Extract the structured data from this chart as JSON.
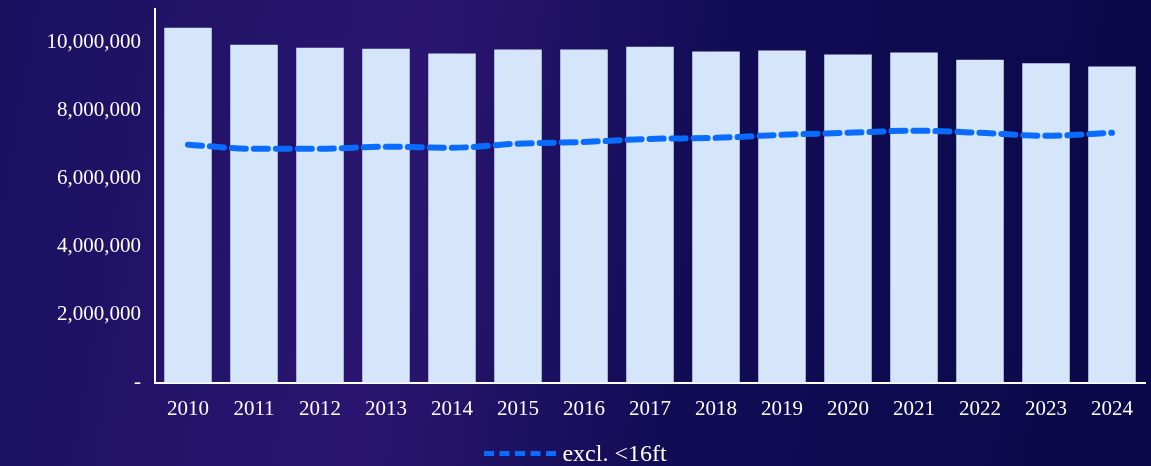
{
  "chart_data": {
    "type": "bar",
    "categories": [
      "2010",
      "2011",
      "2012",
      "2013",
      "2014",
      "2015",
      "2016",
      "2017",
      "2018",
      "2019",
      "2020",
      "2021",
      "2022",
      "2023",
      "2024"
    ],
    "series": [
      {
        "color": "#d5e6fb",
        "values": [
          10440000,
          9940000,
          9850000,
          9820000,
          9680000,
          9800000,
          9800000,
          9880000,
          9740000,
          9770000,
          9650000,
          9710000,
          9500000,
          9390000,
          9300000
        ]
      },
      {
        "type": "line",
        "name": "excl. <16ft",
        "color": "#0a6cff",
        "line_style": "dashed",
        "marker": "none",
        "values": [
          7000000,
          6880000,
          6880000,
          6940000,
          6910000,
          7030000,
          7080000,
          7170000,
          7200000,
          7290000,
          7350000,
          7410000,
          7350000,
          7260000,
          7350000
        ]
      }
    ],
    "ylim": [
      0,
      11000000
    ],
    "yticks": [
      {
        "value": 0,
        "label": "-"
      },
      {
        "value": 2000000,
        "label": "2,000,000"
      },
      {
        "value": 4000000,
        "label": "4,000,000"
      },
      {
        "value": 6000000,
        "label": "6,000,000"
      },
      {
        "value": 8000000,
        "label": "8,000,000"
      },
      {
        "value": 10000000,
        "label": "10,000,000"
      }
    ],
    "grid": false,
    "legend": "bottom"
  }
}
